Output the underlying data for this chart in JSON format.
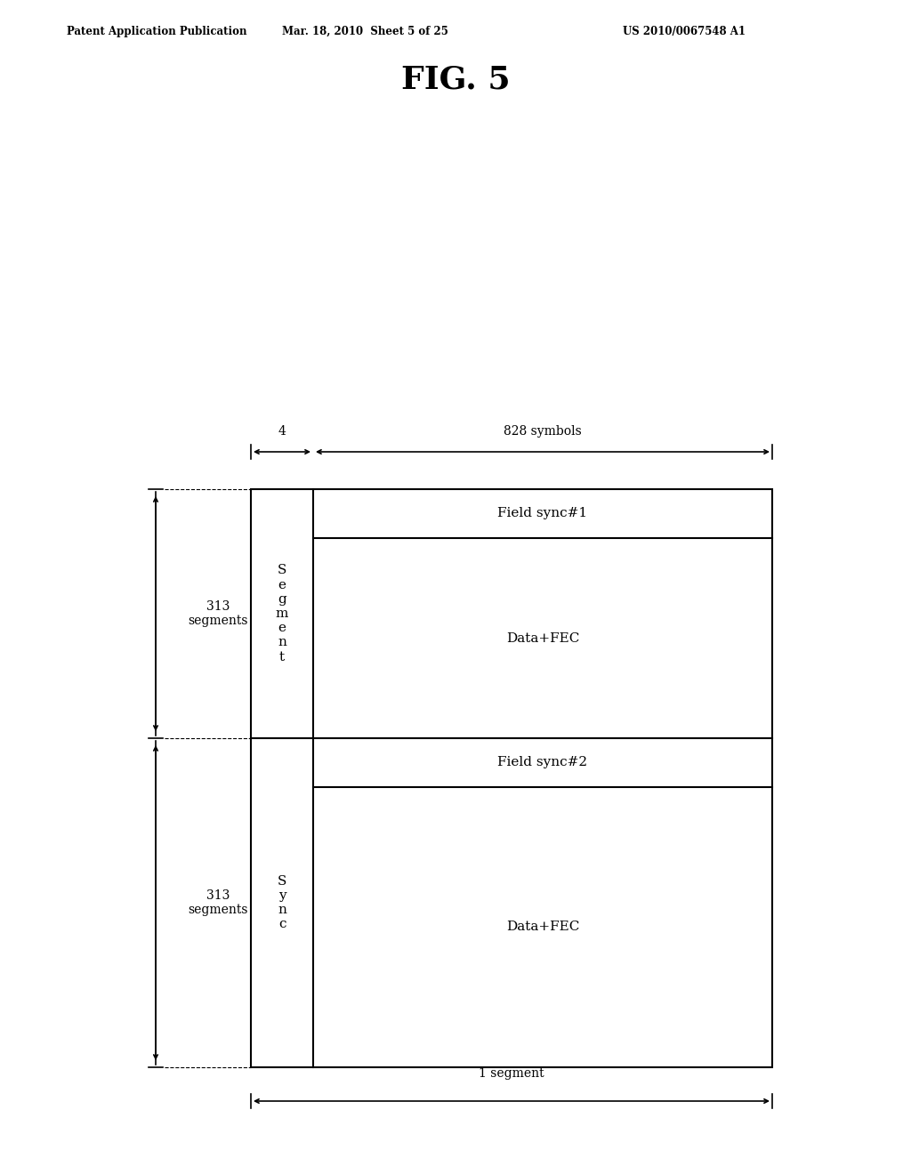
{
  "title": "FIG. 5",
  "header_left": "Patent Application Publication",
  "header_mid": "Mar. 18, 2010  Sheet 5 of 25",
  "header_right": "US 2010/0067548 A1",
  "label_828": "828 symbols",
  "label_4": "4",
  "label_1seg": "1 segment",
  "label_field_sync1": "Field sync#1",
  "label_field_sync2": "Field sync#2",
  "label_data_fec1": "Data+FEC",
  "label_data_fec2": "Data+FEC",
  "label_313_1": "313\nsegments",
  "label_313_2": "313\nsegments",
  "bg_color": "#ffffff",
  "line_color": "#000000",
  "text_color": "#000000",
  "font_size_header": 8.5,
  "font_size_title": 26,
  "font_size_labels": 11,
  "font_size_small": 10
}
